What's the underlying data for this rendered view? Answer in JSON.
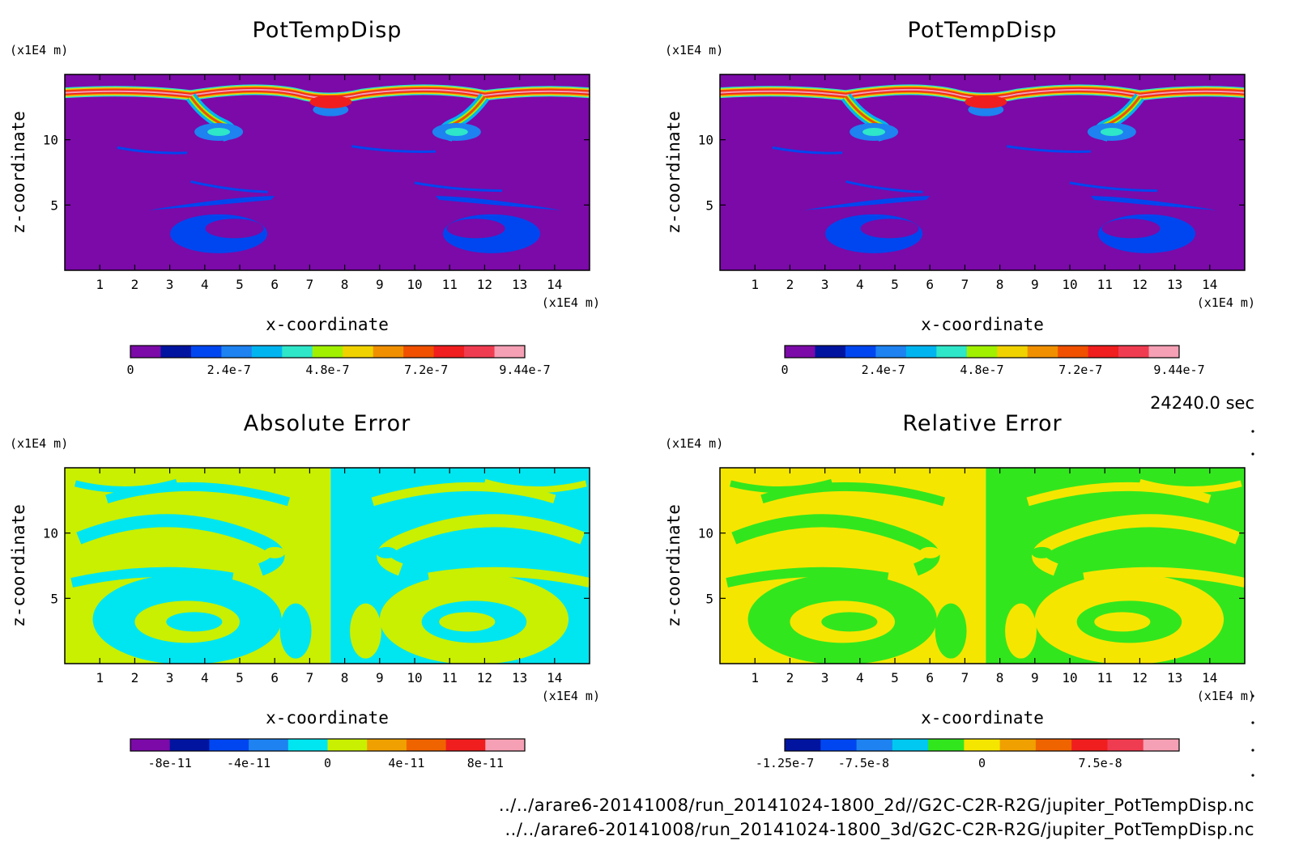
{
  "figure": {
    "time_label": "24240.0 sec",
    "file_paths": [
      "../../arare6-20141008/run_20141024-1800_2d//G2C-C2R-R2G/jupiter_PotTempDisp.nc",
      "../../arare6-20141008/run_20141024-1800_3d/G2C-C2R-R2G/jupiter_PotTempDisp.nc"
    ]
  },
  "chart_data": [
    {
      "type": "heatmap",
      "title": "PotTempDisp",
      "xlabel": "x-coordinate",
      "ylabel": "z-coordinate",
      "x_unit": "(x1E4 m)",
      "y_unit": "(x1E4 m)",
      "xlim": [
        0,
        15
      ],
      "ylim": [
        0,
        15
      ],
      "x_ticks": [
        1,
        2,
        3,
        4,
        5,
        6,
        7,
        8,
        9,
        10,
        11,
        12,
        13,
        14
      ],
      "y_ticks": [
        5,
        10
      ],
      "grid": false,
      "pattern": "field",
      "colorbar": {
        "colors": [
          "#7b0aa8",
          "#0014a0",
          "#0046f0",
          "#1e82f0",
          "#00b4f0",
          "#2ee6c8",
          "#a0f000",
          "#f0d200",
          "#f09000",
          "#f05000",
          "#f01e1e",
          "#f03c50",
          "#f5a0b4"
        ],
        "tick_labels": [
          "0",
          "2.4e-7",
          "4.8e-7",
          "7.2e-7",
          "9.44e-7"
        ],
        "tick_positions": [
          0,
          0.25,
          0.5,
          0.75,
          1.0
        ]
      }
    },
    {
      "type": "heatmap",
      "title": "PotTempDisp",
      "xlabel": "x-coordinate",
      "ylabel": "z-coordinate",
      "x_unit": "(x1E4 m)",
      "y_unit": "(x1E4 m)",
      "xlim": [
        0,
        15
      ],
      "ylim": [
        0,
        15
      ],
      "x_ticks": [
        1,
        2,
        3,
        4,
        5,
        6,
        7,
        8,
        9,
        10,
        11,
        12,
        13,
        14
      ],
      "y_ticks": [
        5,
        10
      ],
      "grid": false,
      "pattern": "field",
      "colorbar": {
        "colors": [
          "#7b0aa8",
          "#0014a0",
          "#0046f0",
          "#1e82f0",
          "#00b4f0",
          "#2ee6c8",
          "#a0f000",
          "#f0d200",
          "#f09000",
          "#f05000",
          "#f01e1e",
          "#f03c50",
          "#f5a0b4"
        ],
        "tick_labels": [
          "0",
          "2.4e-7",
          "4.8e-7",
          "7.2e-7",
          "9.44e-7"
        ],
        "tick_positions": [
          0,
          0.25,
          0.5,
          0.75,
          1.0
        ]
      }
    },
    {
      "type": "heatmap",
      "title": "Absolute Error",
      "xlabel": "x-coordinate",
      "ylabel": "z-coordinate",
      "x_unit": "(x1E4 m)",
      "y_unit": "(x1E4 m)",
      "xlim": [
        0,
        15
      ],
      "ylim": [
        0,
        15
      ],
      "x_ticks": [
        1,
        2,
        3,
        4,
        5,
        6,
        7,
        8,
        9,
        10,
        11,
        12,
        13,
        14
      ],
      "y_ticks": [
        5,
        10
      ],
      "grid": false,
      "pattern": "error",
      "error_colors": [
        "#00e6f0",
        "#c8f000"
      ],
      "colorbar": {
        "colors": [
          "#7b0aa8",
          "#0014a0",
          "#0046f0",
          "#1e82f0",
          "#00e6f0",
          "#c8f000",
          "#f0a000",
          "#f06400",
          "#f01e1e",
          "#f5a0b4"
        ],
        "tick_labels": [
          "-8e-11",
          "-4e-11",
          "0",
          "4e-11",
          "8e-11"
        ],
        "tick_positions": [
          0.1,
          0.3,
          0.5,
          0.7,
          0.9
        ]
      }
    },
    {
      "type": "heatmap",
      "title": "Relative Error",
      "xlabel": "x-coordinate",
      "ylabel": "z-coordinate",
      "x_unit": "(x1E4 m)",
      "y_unit": "(x1E4 m)",
      "xlim": [
        0,
        15
      ],
      "ylim": [
        0,
        15
      ],
      "x_ticks": [
        1,
        2,
        3,
        4,
        5,
        6,
        7,
        8,
        9,
        10,
        11,
        12,
        13,
        14
      ],
      "y_ticks": [
        5,
        10
      ],
      "grid": false,
      "pattern": "error",
      "error_colors": [
        "#32e61e",
        "#f5e600"
      ],
      "colorbar": {
        "colors": [
          "#0014a0",
          "#0046f0",
          "#1e82f0",
          "#00c8f0",
          "#32e61e",
          "#f5e600",
          "#f0a000",
          "#f06400",
          "#f01e1e",
          "#f03c50",
          "#f5a0b4"
        ],
        "tick_labels": [
          "-1.25e-7",
          "-7.5e-8",
          "0",
          "7.5e-8"
        ],
        "tick_positions": [
          0.0,
          0.2,
          0.5,
          0.8
        ]
      }
    }
  ]
}
